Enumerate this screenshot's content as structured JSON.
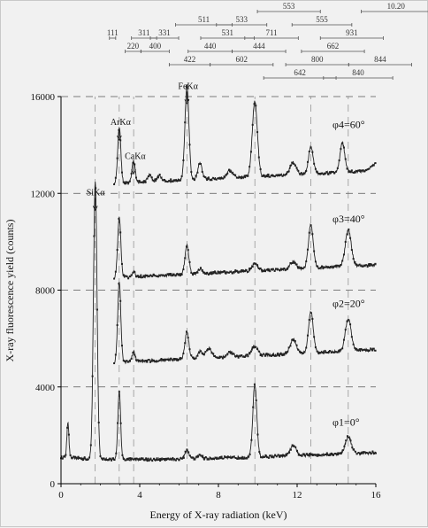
{
  "chart_data": {
    "type": "line",
    "xlabel": "Energy of X-ray radiation (keV)",
    "ylabel": "X-ray fluorescence yield (counts)",
    "xlim": [
      0,
      16
    ],
    "ylim": [
      0,
      16000
    ],
    "x_ticks": [
      0,
      4,
      8,
      12,
      16
    ],
    "y_ticks": [
      0,
      4000,
      8000,
      12000,
      16000
    ],
    "gridlines": "dashed at y ticks and at characteristic line energies",
    "peak_labels": [
      {
        "text": "SiKα",
        "x": 1.74,
        "y": 11700
      },
      {
        "text": "ArKα",
        "x": 2.96,
        "y": 14600
      },
      {
        "text": "CaKα",
        "x": 3.69,
        "y": 13200
      },
      {
        "text": "FeKα",
        "x": 6.4,
        "y": 16100
      }
    ],
    "series": [
      {
        "name": "φ1=0°",
        "baseline": 800,
        "x_start": 0.0,
        "peaks": [
          [
            0.35,
            1500,
            0.05
          ],
          [
            1.74,
            11500,
            0.09
          ],
          [
            2.96,
            2800,
            0.07
          ],
          [
            6.4,
            350,
            0.1
          ],
          [
            7.06,
            150,
            0.1
          ],
          [
            9.85,
            3000,
            0.1
          ],
          [
            11.8,
            400,
            0.15
          ],
          [
            14.6,
            700,
            0.15
          ]
        ]
      },
      {
        "name": "φ2=20°",
        "baseline": 4900,
        "x_start": 2.7,
        "peaks": [
          [
            2.96,
            3300,
            0.08
          ],
          [
            3.69,
            400,
            0.08
          ],
          [
            6.4,
            1100,
            0.1
          ],
          [
            7.06,
            300,
            0.1
          ],
          [
            7.5,
            400,
            0.15
          ],
          [
            8.6,
            200,
            0.15
          ],
          [
            9.85,
            400,
            0.15
          ],
          [
            11.8,
            600,
            0.15
          ],
          [
            12.7,
            1700,
            0.12
          ],
          [
            14.6,
            1300,
            0.15
          ]
        ]
      },
      {
        "name": "φ3=40°",
        "baseline": 8400,
        "x_start": 2.7,
        "peaks": [
          [
            2.96,
            2500,
            0.08
          ],
          [
            3.69,
            200,
            0.08
          ],
          [
            6.4,
            1200,
            0.1
          ],
          [
            7.06,
            200,
            0.1
          ],
          [
            9.85,
            300,
            0.15
          ],
          [
            11.8,
            300,
            0.15
          ],
          [
            12.7,
            1800,
            0.12
          ],
          [
            14.6,
            1500,
            0.15
          ]
        ]
      },
      {
        "name": "φ4=60°",
        "baseline": 12300,
        "x_start": 2.7,
        "peaks": [
          [
            2.96,
            2300,
            0.08
          ],
          [
            3.69,
            900,
            0.08
          ],
          [
            4.5,
            300,
            0.1
          ],
          [
            5.0,
            250,
            0.1
          ],
          [
            6.4,
            3900,
            0.1
          ],
          [
            7.06,
            700,
            0.1
          ],
          [
            8.6,
            300,
            0.15
          ],
          [
            9.85,
            3100,
            0.13
          ],
          [
            11.8,
            500,
            0.15
          ],
          [
            12.7,
            1100,
            0.12
          ],
          [
            14.3,
            1200,
            0.12
          ],
          [
            16.0,
            300,
            0.2
          ]
        ]
      }
    ],
    "hkl_reflections": [
      {
        "label": "111",
        "x0": 0.6,
        "x1": 0.8,
        "row": 0
      },
      {
        "label": "220",
        "x0": 1.1,
        "x1": 1.6,
        "row": 1
      },
      {
        "label": "311",
        "x0": 1.3,
        "x1": 2.1,
        "row": 0
      },
      {
        "label": "400",
        "x0": 1.6,
        "x1": 2.5,
        "row": 1
      },
      {
        "label": "331",
        "x0": 1.9,
        "x1": 2.8,
        "row": 0
      },
      {
        "label": "422",
        "x0": 2.5,
        "x1": 3.8,
        "row": 2
      },
      {
        "label": "511",
        "x0": 2.7,
        "x1": 4.5,
        "row": -1
      },
      {
        "label": "440",
        "x0": 3.1,
        "x1": 4.5,
        "row": 1
      },
      {
        "label": "531",
        "x0": 3.5,
        "x1": 5.2,
        "row": 0
      },
      {
        "label": "533",
        "x0": 4.0,
        "x1": 5.6,
        "row": -1
      },
      {
        "label": "602",
        "x0": 3.8,
        "x1": 5.8,
        "row": 2
      },
      {
        "label": "444",
        "x0": 4.5,
        "x1": 6.2,
        "row": 1
      },
      {
        "label": "711",
        "x0": 4.9,
        "x1": 6.6,
        "row": 0
      },
      {
        "label": "553",
        "x0": 5.3,
        "x1": 7.3,
        "row": -2
      },
      {
        "label": "555",
        "x0": 6.4,
        "x1": 8.3,
        "row": -1
      },
      {
        "label": "642",
        "x0": 5.5,
        "x1": 7.8,
        "row": 3
      },
      {
        "label": "800",
        "x0": 6.2,
        "x1": 8.2,
        "row": 2
      },
      {
        "label": "662",
        "x0": 6.7,
        "x1": 8.7,
        "row": 1
      },
      {
        "label": "931",
        "x0": 7.3,
        "x1": 9.3,
        "row": 0
      },
      {
        "label": "840",
        "x0": 7.4,
        "x1": 9.6,
        "row": 3
      },
      {
        "label": "844",
        "x0": 8.2,
        "x1": 10.2,
        "row": 2
      },
      {
        "label": "10.20",
        "x0": 8.6,
        "x1": 10.8,
        "row": -2
      }
    ]
  }
}
